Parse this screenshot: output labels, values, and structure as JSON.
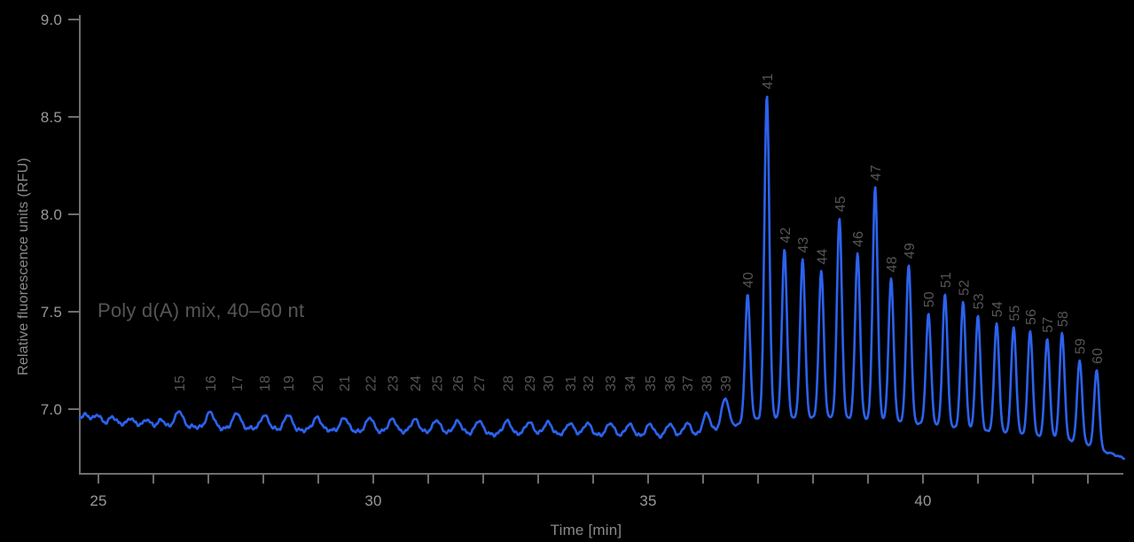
{
  "annotation": "Poly d(A) mix, 40–60 nt",
  "colors": {
    "background": "#000000",
    "trace": "#2c62ee",
    "axis": "#6e6e6e",
    "tick_label": "#999999",
    "axis_title": "#8a8a8a",
    "peak_label": "#555555",
    "annotation": "#555555"
  },
  "chart_data": {
    "type": "line",
    "title": "",
    "xlabel": "Time [min]",
    "ylabel": "Relative fluorescence units (RFU)",
    "legend": "none",
    "grid": "off",
    "xlim": [
      24.66,
      43.66
    ],
    "x_major_tick_labels": [
      25,
      30,
      35,
      40
    ],
    "x_minor_tick_start": 25,
    "x_minor_tick_end": 43,
    "x_minor_tick_step": 1,
    "y_ticks": [
      7.0,
      7.5,
      8.0,
      8.5,
      9.0
    ],
    "ylim": [
      6.7,
      9.05
    ],
    "series_name": "Poly d(A) electropherogram trace",
    "peaks": [
      {
        "label": "15",
        "t": 26.47,
        "rfu": 6.99
      },
      {
        "label": "16",
        "t": 27.03,
        "rfu": 6.985
      },
      {
        "label": "17",
        "t": 27.52,
        "rfu": 6.98
      },
      {
        "label": "18",
        "t": 28.02,
        "rfu": 6.97
      },
      {
        "label": "19",
        "t": 28.45,
        "rfu": 6.97
      },
      {
        "label": "20",
        "t": 28.98,
        "rfu": 6.96
      },
      {
        "label": "21",
        "t": 29.47,
        "rfu": 6.955
      },
      {
        "label": "22",
        "t": 29.94,
        "rfu": 6.955
      },
      {
        "label": "23",
        "t": 30.35,
        "rfu": 6.95
      },
      {
        "label": "24",
        "t": 30.76,
        "rfu": 6.95
      },
      {
        "label": "25",
        "t": 31.15,
        "rfu": 6.945
      },
      {
        "label": "26",
        "t": 31.53,
        "rfu": 6.94
      },
      {
        "label": "27",
        "t": 31.92,
        "rfu": 6.94
      },
      {
        "label": "28",
        "t": 32.44,
        "rfu": 6.94
      },
      {
        "label": "29",
        "t": 32.84,
        "rfu": 6.935
      },
      {
        "label": "30",
        "t": 33.18,
        "rfu": 6.935
      },
      {
        "label": "31",
        "t": 33.58,
        "rfu": 6.93
      },
      {
        "label": "32",
        "t": 33.9,
        "rfu": 6.93
      },
      {
        "label": "33",
        "t": 34.31,
        "rfu": 6.93
      },
      {
        "label": "34",
        "t": 34.66,
        "rfu": 6.925
      },
      {
        "label": "35",
        "t": 35.03,
        "rfu": 6.925
      },
      {
        "label": "36",
        "t": 35.39,
        "rfu": 6.925
      },
      {
        "label": "37",
        "t": 35.71,
        "rfu": 6.93
      },
      {
        "label": "38",
        "t": 36.06,
        "rfu": 6.98
      },
      {
        "label": "39",
        "t": 36.4,
        "rfu": 7.055
      },
      {
        "label": "40",
        "t": 36.81,
        "rfu": 7.59
      },
      {
        "label": "41",
        "t": 37.16,
        "rfu": 8.61
      },
      {
        "label": "42",
        "t": 37.48,
        "rfu": 7.82
      },
      {
        "label": "43",
        "t": 37.81,
        "rfu": 7.77
      },
      {
        "label": "44",
        "t": 38.15,
        "rfu": 7.71
      },
      {
        "label": "45",
        "t": 38.48,
        "rfu": 7.98
      },
      {
        "label": "46",
        "t": 38.81,
        "rfu": 7.8
      },
      {
        "label": "47",
        "t": 39.13,
        "rfu": 8.14
      },
      {
        "label": "48",
        "t": 39.42,
        "rfu": 7.67
      },
      {
        "label": "49",
        "t": 39.74,
        "rfu": 7.74
      },
      {
        "label": "50",
        "t": 40.1,
        "rfu": 7.49
      },
      {
        "label": "51",
        "t": 40.4,
        "rfu": 7.59
      },
      {
        "label": "52",
        "t": 40.73,
        "rfu": 7.55
      },
      {
        "label": "53",
        "t": 41.0,
        "rfu": 7.48
      },
      {
        "label": "54",
        "t": 41.34,
        "rfu": 7.44
      },
      {
        "label": "55",
        "t": 41.65,
        "rfu": 7.42
      },
      {
        "label": "56",
        "t": 41.95,
        "rfu": 7.4
      },
      {
        "label": "57",
        "t": 42.26,
        "rfu": 7.36
      },
      {
        "label": "58",
        "t": 42.53,
        "rfu": 7.39
      },
      {
        "label": "59",
        "t": 42.85,
        "rfu": 7.25
      },
      {
        "label": "60",
        "t": 43.16,
        "rfu": 7.2
      }
    ],
    "minor_unlabeled_bumps": [
      {
        "t": 24.78,
        "rfu": 6.975
      },
      {
        "t": 24.98,
        "rfu": 6.97
      },
      {
        "t": 25.25,
        "rfu": 6.962
      },
      {
        "t": 25.58,
        "rfu": 6.955
      },
      {
        "t": 25.88,
        "rfu": 6.95
      },
      {
        "t": 26.15,
        "rfu": 6.948
      },
      {
        "t": 43.42,
        "rfu": 6.775
      }
    ],
    "baseline_anchors": [
      [
        24.66,
        6.955
      ],
      [
        25.2,
        6.93
      ],
      [
        26.0,
        6.915
      ],
      [
        27.0,
        6.905
      ],
      [
        28.5,
        6.895
      ],
      [
        30.0,
        6.885
      ],
      [
        31.5,
        6.875
      ],
      [
        33.0,
        6.87
      ],
      [
        34.2,
        6.862
      ],
      [
        35.3,
        6.855
      ],
      [
        36.0,
        6.862
      ],
      [
        36.5,
        6.9
      ],
      [
        36.8,
        6.945
      ],
      [
        37.3,
        6.955
      ],
      [
        38.3,
        6.955
      ],
      [
        39.3,
        6.945
      ],
      [
        40.3,
        6.915
      ],
      [
        41.0,
        6.89
      ],
      [
        41.8,
        6.868
      ],
      [
        42.5,
        6.848
      ],
      [
        43.0,
        6.815
      ],
      [
        43.3,
        6.78
      ],
      [
        43.55,
        6.758
      ],
      [
        43.66,
        6.748
      ]
    ]
  }
}
